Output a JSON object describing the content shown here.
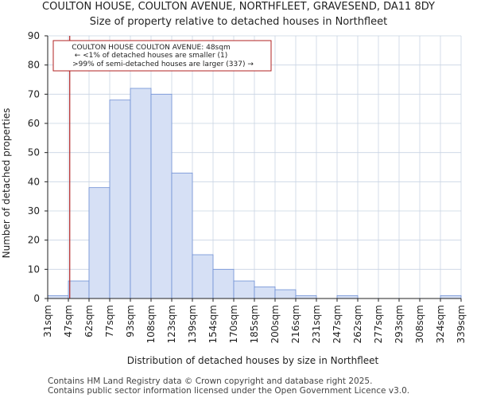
{
  "chart_data": {
    "type": "bar",
    "title": "COULTON HOUSE, COULTON AVENUE, NORTHFLEET, GRAVESEND, DA11 8DY",
    "subtitle": "Size of property relative to detached houses in Northfleet",
    "xlabel": "Distribution of detached houses by size in Northfleet",
    "ylabel": "Number of detached properties",
    "ylim": [
      0,
      90
    ],
    "yticks": [
      0,
      10,
      20,
      30,
      40,
      50,
      60,
      70,
      80,
      90
    ],
    "bin_edges": [
      "31sqm",
      "47sqm",
      "62sqm",
      "77sqm",
      "93sqm",
      "108sqm",
      "123sqm",
      "139sqm",
      "154sqm",
      "170sqm",
      "185sqm",
      "200sqm",
      "216sqm",
      "231sqm",
      "247sqm",
      "262sqm",
      "277sqm",
      "293sqm",
      "308sqm",
      "324sqm",
      "339sqm"
    ],
    "values": [
      1,
      6,
      38,
      68,
      72,
      70,
      43,
      15,
      10,
      6,
      4,
      3,
      1,
      0,
      1,
      0,
      0,
      0,
      0,
      1
    ],
    "grid": true,
    "colors": {
      "bar_fill": "#d6e0f5",
      "bar_edge": "#6e8fd4",
      "marker": "#b22222",
      "grid": "#c9d4e3"
    },
    "marker": {
      "value_sqm": 48
    },
    "annotation": {
      "line1": "COULTON HOUSE COULTON AVENUE: 48sqm",
      "line2": "← <1% of detached houses are smaller (1)",
      "line3": ">99% of semi-detached houses are larger (337) →"
    }
  },
  "footer": {
    "line1": "Contains HM Land Registry data © Crown copyright and database right 2025.",
    "line2": "Contains public sector information licensed under the Open Government Licence v3.0."
  }
}
